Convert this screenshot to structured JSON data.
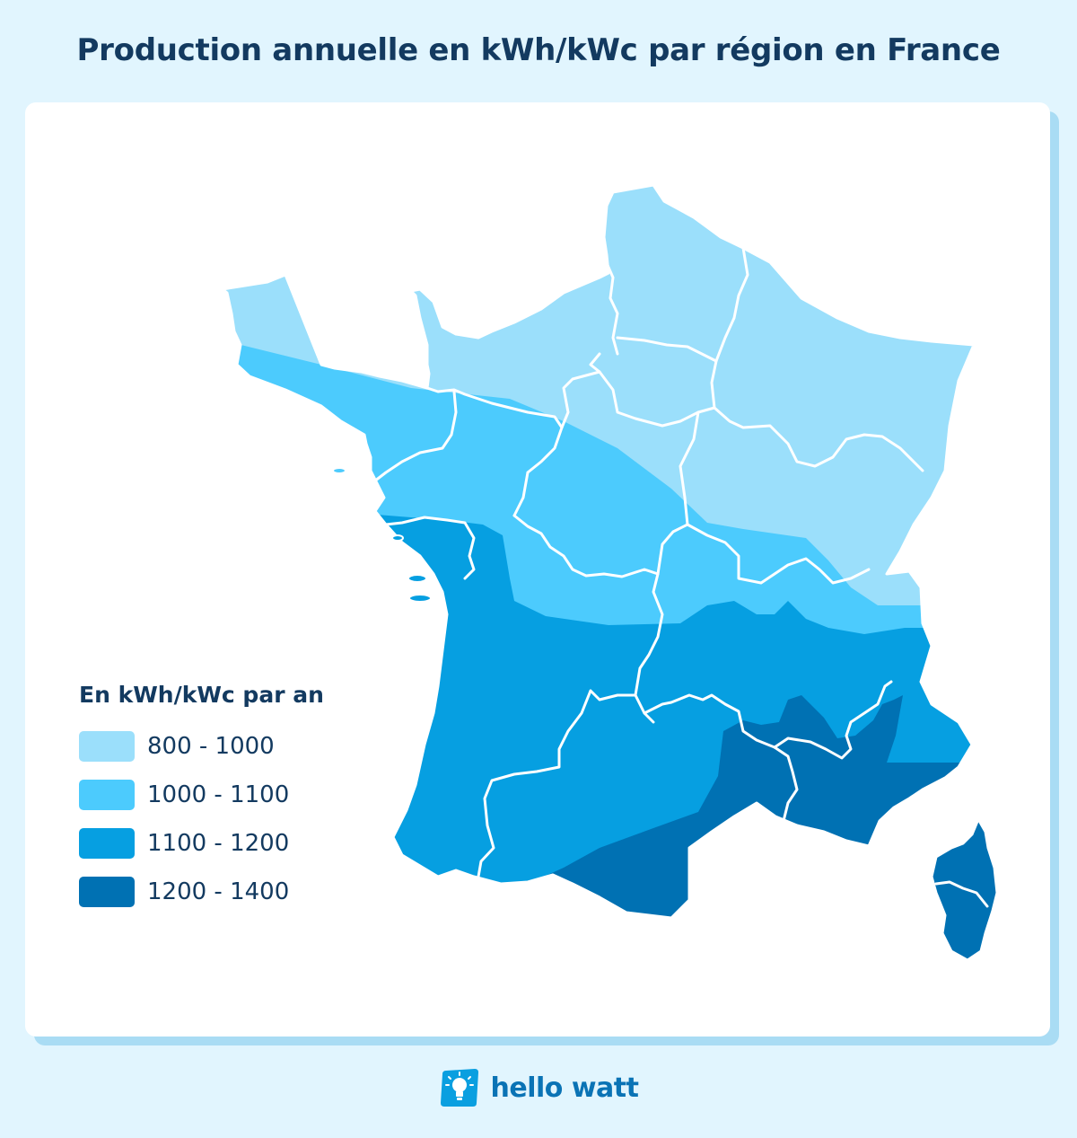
{
  "title": "Production annuelle en kWh/kWc par région en France",
  "legend": {
    "title": "En kWh/kWc par an",
    "items": [
      {
        "label": "800 - 1000",
        "color": "#9bdffb"
      },
      {
        "label": "1000 - 1100",
        "color": "#4ccbfd"
      },
      {
        "label": "1100 - 1200",
        "color": "#069fe1"
      },
      {
        "label": "1200 - 1400",
        "color": "#0071b3"
      }
    ]
  },
  "brand": {
    "name": "hello watt",
    "icon": "lightbulb-icon"
  },
  "colors": {
    "background": "#e1f5fe",
    "title": "#133a60",
    "brand": "#0a73b5",
    "borders": "#ffffff"
  }
}
